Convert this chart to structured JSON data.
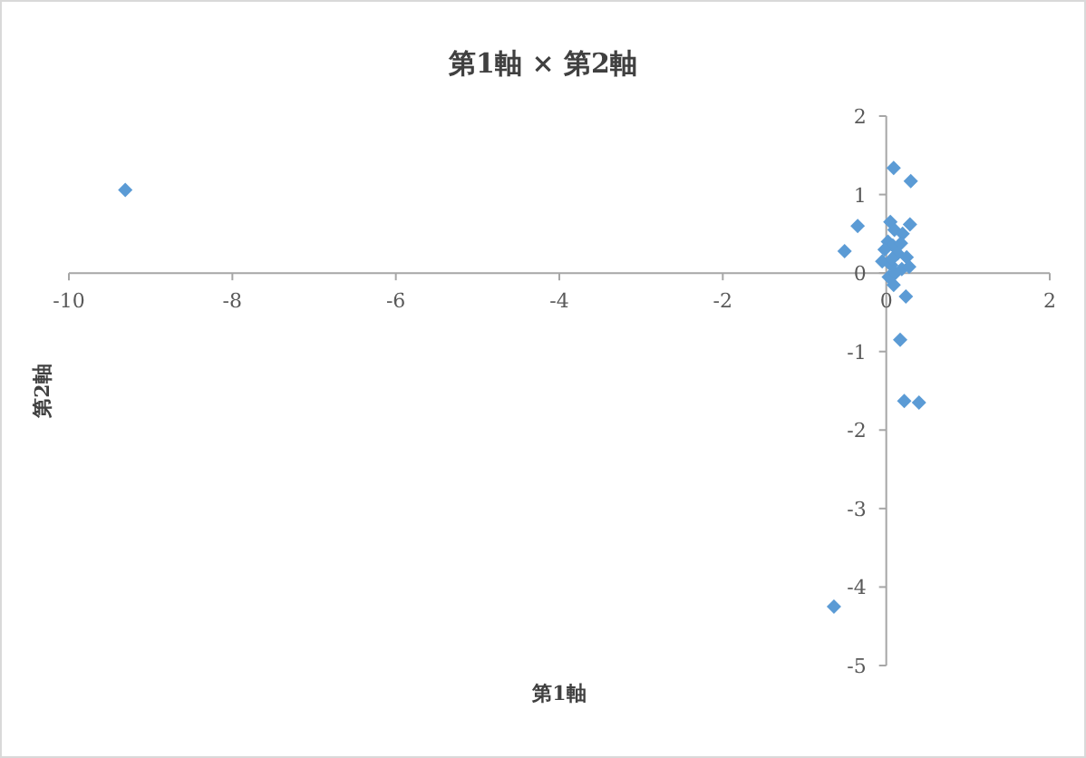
{
  "chart_data": {
    "type": "scatter",
    "title": "第1軸 × 第2軸",
    "xlabel": "第1軸",
    "ylabel": "第2軸",
    "xlim": [
      -10,
      2
    ],
    "ylim": [
      -5,
      2
    ],
    "xticks": [
      -10,
      -8,
      -6,
      -4,
      -2,
      0,
      2
    ],
    "yticks": [
      -5,
      -4,
      -3,
      -2,
      -1,
      0,
      1,
      2
    ],
    "marker": "diamond",
    "series": [
      {
        "color": "#5b9bd5",
        "x": [
          -9.31,
          0.09,
          0.3,
          -0.35,
          -0.51,
          0.29,
          0.24,
          0.17,
          0.22,
          0.4,
          -0.64,
          0.05,
          0.1,
          0.2,
          0.02,
          0.08,
          0.18,
          0.25,
          -0.05,
          0.06,
          0.14,
          0.03,
          0.11,
          0.19,
          -0.02,
          0.07,
          0.28,
          0.09
        ],
        "values": [
          1.06,
          1.34,
          1.17,
          0.6,
          0.28,
          0.62,
          -0.3,
          -0.85,
          -1.63,
          -1.65,
          -4.25,
          0.65,
          0.55,
          0.5,
          0.4,
          0.35,
          0.38,
          0.2,
          0.15,
          0.1,
          0.25,
          -0.05,
          0.0,
          0.05,
          0.3,
          0.18,
          0.08,
          -0.15
        ]
      }
    ]
  }
}
